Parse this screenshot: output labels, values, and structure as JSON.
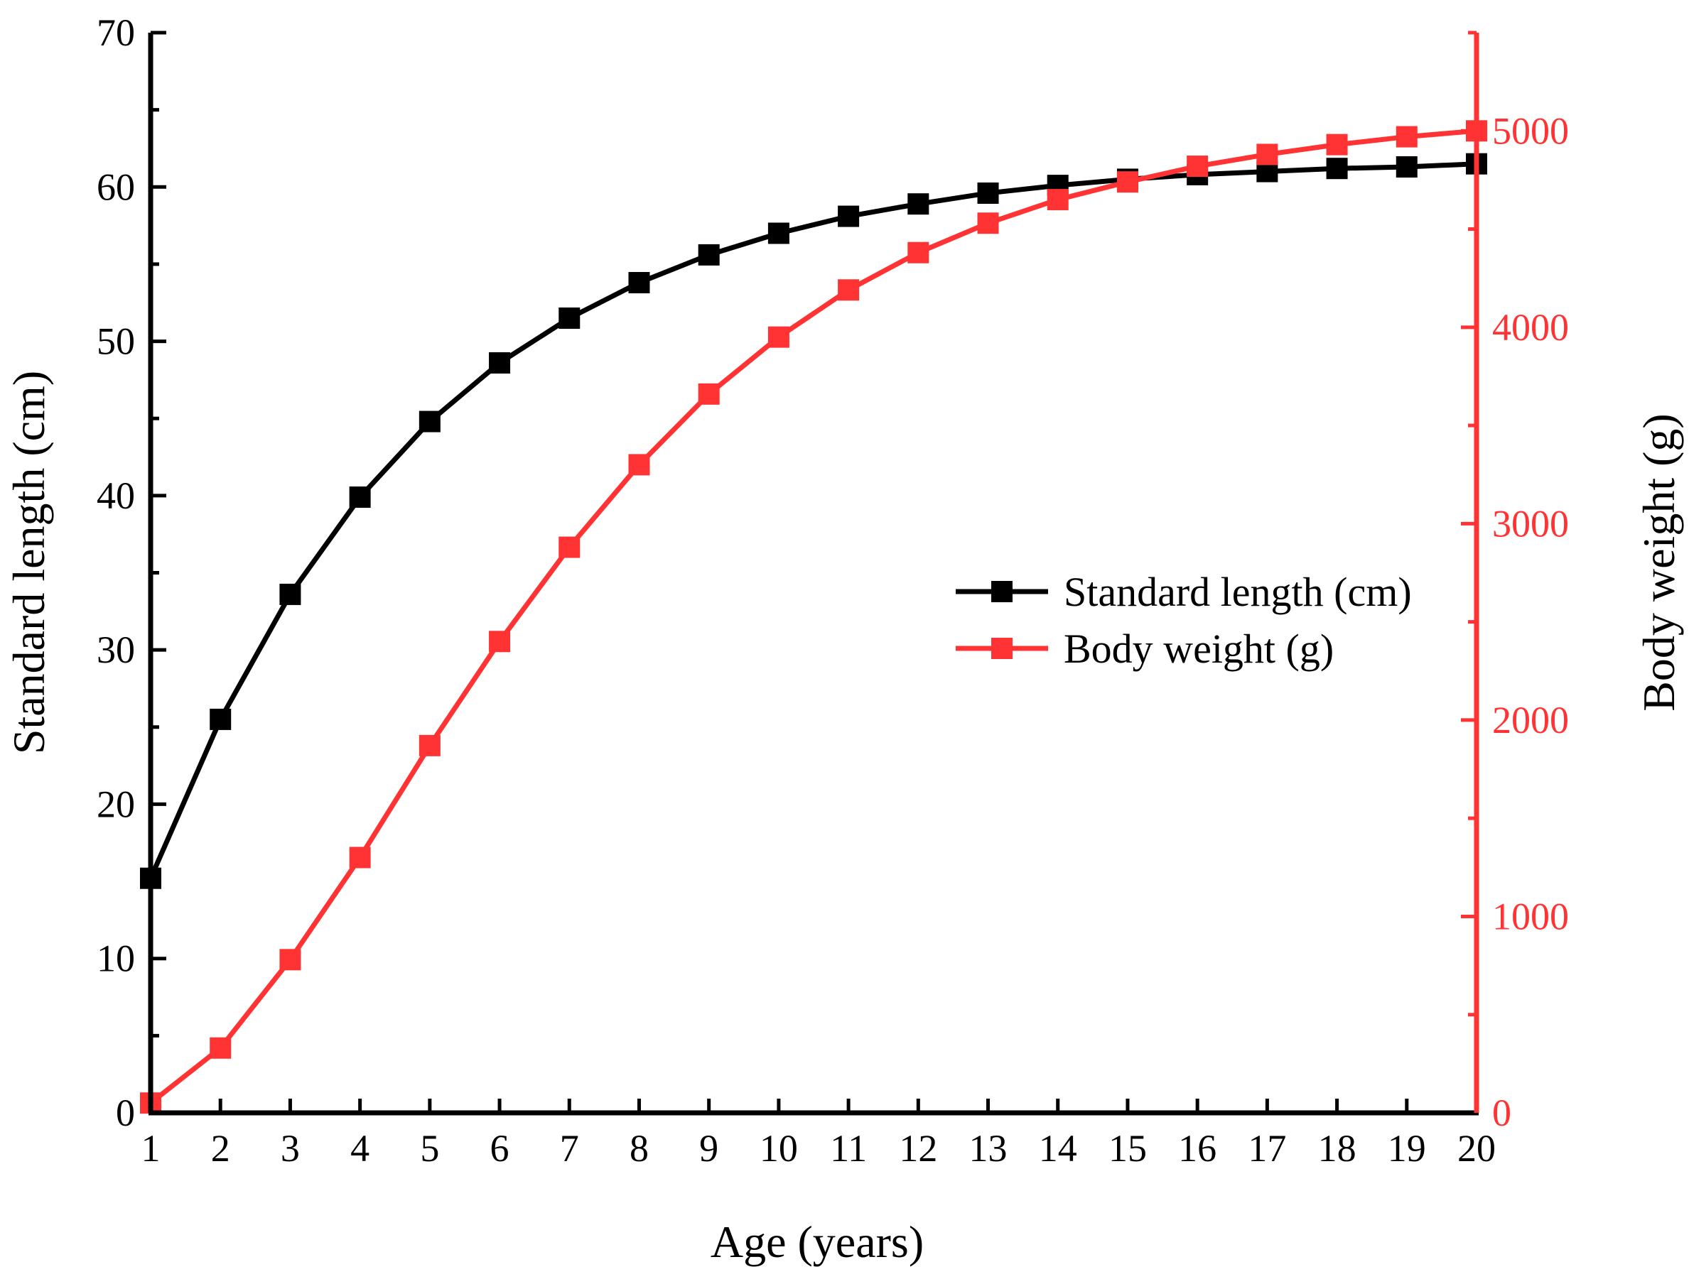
{
  "chart_data": {
    "type": "line",
    "xlabel": "Age (years)",
    "ylabel_left": "Standard length (cm)",
    "ylabel_right": "Body weight (g)",
    "x": [
      1,
      2,
      3,
      4,
      5,
      6,
      7,
      8,
      9,
      10,
      11,
      12,
      13,
      14,
      15,
      16,
      17,
      18,
      19,
      20
    ],
    "xlim": [
      1,
      20
    ],
    "ylim_left": [
      0,
      70
    ],
    "ylim_right": [
      0,
      5500
    ],
    "x_ticks": [
      "1",
      "2",
      "3",
      "4",
      "5",
      "6",
      "7",
      "8",
      "9",
      "10",
      "11",
      "12",
      "13",
      "14",
      "15",
      "16",
      "17",
      "18",
      "19",
      "20"
    ],
    "y_left_ticks": [
      "0",
      "10",
      "20",
      "30",
      "40",
      "50",
      "60",
      "70"
    ],
    "y_right_ticks": [
      "0",
      "1000",
      "2000",
      "3000",
      "4000",
      "5000"
    ],
    "legend_position": "center-right",
    "series": [
      {
        "name": "Standard length (cm)",
        "axis": "left",
        "color": "#000000",
        "marker": "square",
        "values": [
          15.2,
          25.5,
          33.6,
          39.9,
          44.8,
          48.6,
          51.5,
          53.8,
          55.6,
          57.0,
          58.1,
          58.9,
          59.6,
          60.1,
          60.5,
          60.8,
          61.0,
          61.2,
          61.3,
          61.5
        ]
      },
      {
        "name": "Body weight (g)",
        "axis": "right",
        "color": "#ff3333",
        "marker": "square",
        "values": [
          50,
          330,
          780,
          1300,
          1870,
          2400,
          2880,
          3300,
          3660,
          3950,
          4190,
          4380,
          4530,
          4650,
          4740,
          4820,
          4880,
          4930,
          4970,
          5000
        ]
      }
    ]
  }
}
